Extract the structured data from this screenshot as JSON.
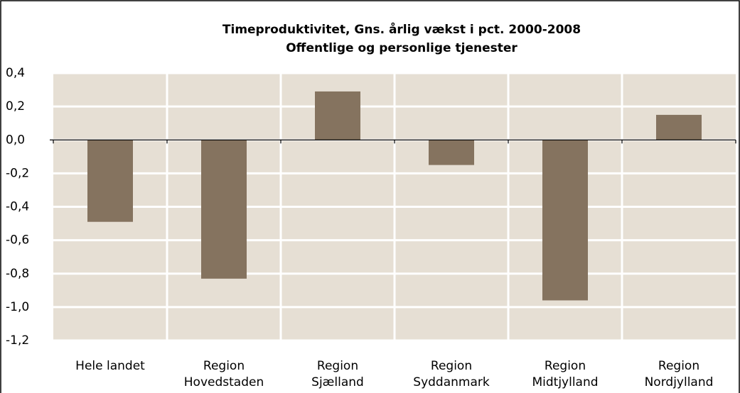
{
  "chart_data": {
    "type": "bar",
    "title": "Timeproduktivitet, Gns. årlig vækst i pct. 2000-2008",
    "subtitle": "Offentlige og personlige tjenester",
    "categories": [
      "Hele landet",
      "Region\nHovedstaden",
      "Region\nSjælland",
      "Region\nSyddanmark",
      "Region\nMidtjylland",
      "Region\nNordjylland"
    ],
    "values": [
      -0.49,
      -0.83,
      0.29,
      -0.15,
      -0.96,
      0.15
    ],
    "color": "#85735f",
    "ylim": [
      -1.2,
      0.4
    ],
    "yticks": [
      {
        "value": -1.2,
        "label": "-1,2"
      },
      {
        "value": -1.0,
        "label": "-1,0"
      },
      {
        "value": -0.8,
        "label": "-0,8"
      },
      {
        "value": -0.6,
        "label": "-0,6"
      },
      {
        "value": -0.4,
        "label": "-0,4"
      },
      {
        "value": -0.2,
        "label": "-0,2"
      },
      {
        "value": 0,
        "label": "0,0"
      },
      {
        "value": 0.2,
        "label": "0,2"
      },
      {
        "value": 0.4,
        "label": "0,4"
      }
    ],
    "grid": true
  }
}
